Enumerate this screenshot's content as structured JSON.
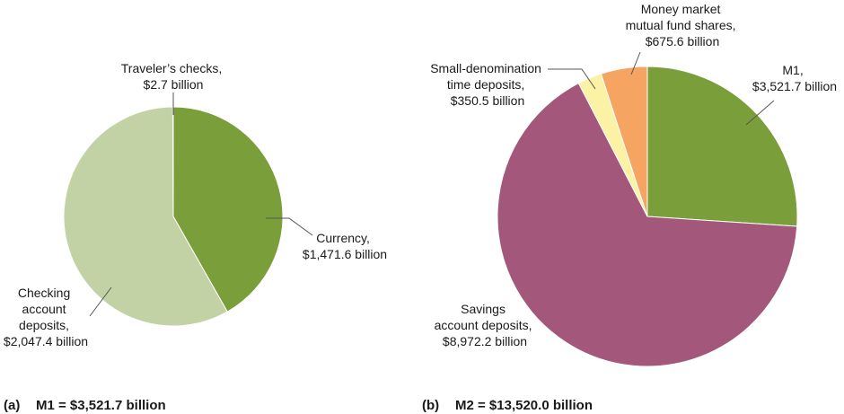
{
  "colors": {
    "currency": "#7a9e3a",
    "checking": "#c2d2a5",
    "travelers": "#d8dd4a",
    "m1": "#7a9e3a",
    "savings": "#a2577b",
    "small_time": "#fbf2a6",
    "money_market": "#f5a462"
  },
  "chart_data": [
    {
      "type": "pie",
      "caption_prefix": "(a)",
      "caption": "M1 = $3,521.7 billion",
      "slices": [
        {
          "key": "currency",
          "lines": [
            "Currency,",
            "$1,471.6 billion"
          ],
          "value": 1471.6,
          "color": "#7a9e3a"
        },
        {
          "key": "checking",
          "lines": [
            "Checking",
            "account",
            "deposits,",
            "$2,047.4 billion"
          ],
          "value": 2047.4,
          "color": "#c2d2a5"
        },
        {
          "key": "travelers",
          "lines": [
            "Traveler’s checks,",
            "$2.7 billion"
          ],
          "value": 2.7,
          "color": "#d8dd4a"
        }
      ]
    },
    {
      "type": "pie",
      "caption_prefix": "(b)",
      "caption": "M2 = $13,520.0 billion",
      "slices": [
        {
          "key": "m1",
          "lines": [
            "M1,",
            "$3,521.7 billion"
          ],
          "value": 3521.7,
          "color": "#7a9e3a"
        },
        {
          "key": "savings",
          "lines": [
            "Savings",
            "account deposits,",
            "$8,972.2 billion"
          ],
          "value": 8972.2,
          "color": "#a2577b"
        },
        {
          "key": "small_time",
          "lines": [
            "Small-denomination",
            "time deposits,",
            "$350.5 billion"
          ],
          "value": 350.5,
          "color": "#fbf2a6"
        },
        {
          "key": "money_market",
          "lines": [
            "Money market",
            "mutual fund shares,",
            "$675.6 billion"
          ],
          "value": 675.6,
          "color": "#f5a462"
        }
      ]
    }
  ]
}
